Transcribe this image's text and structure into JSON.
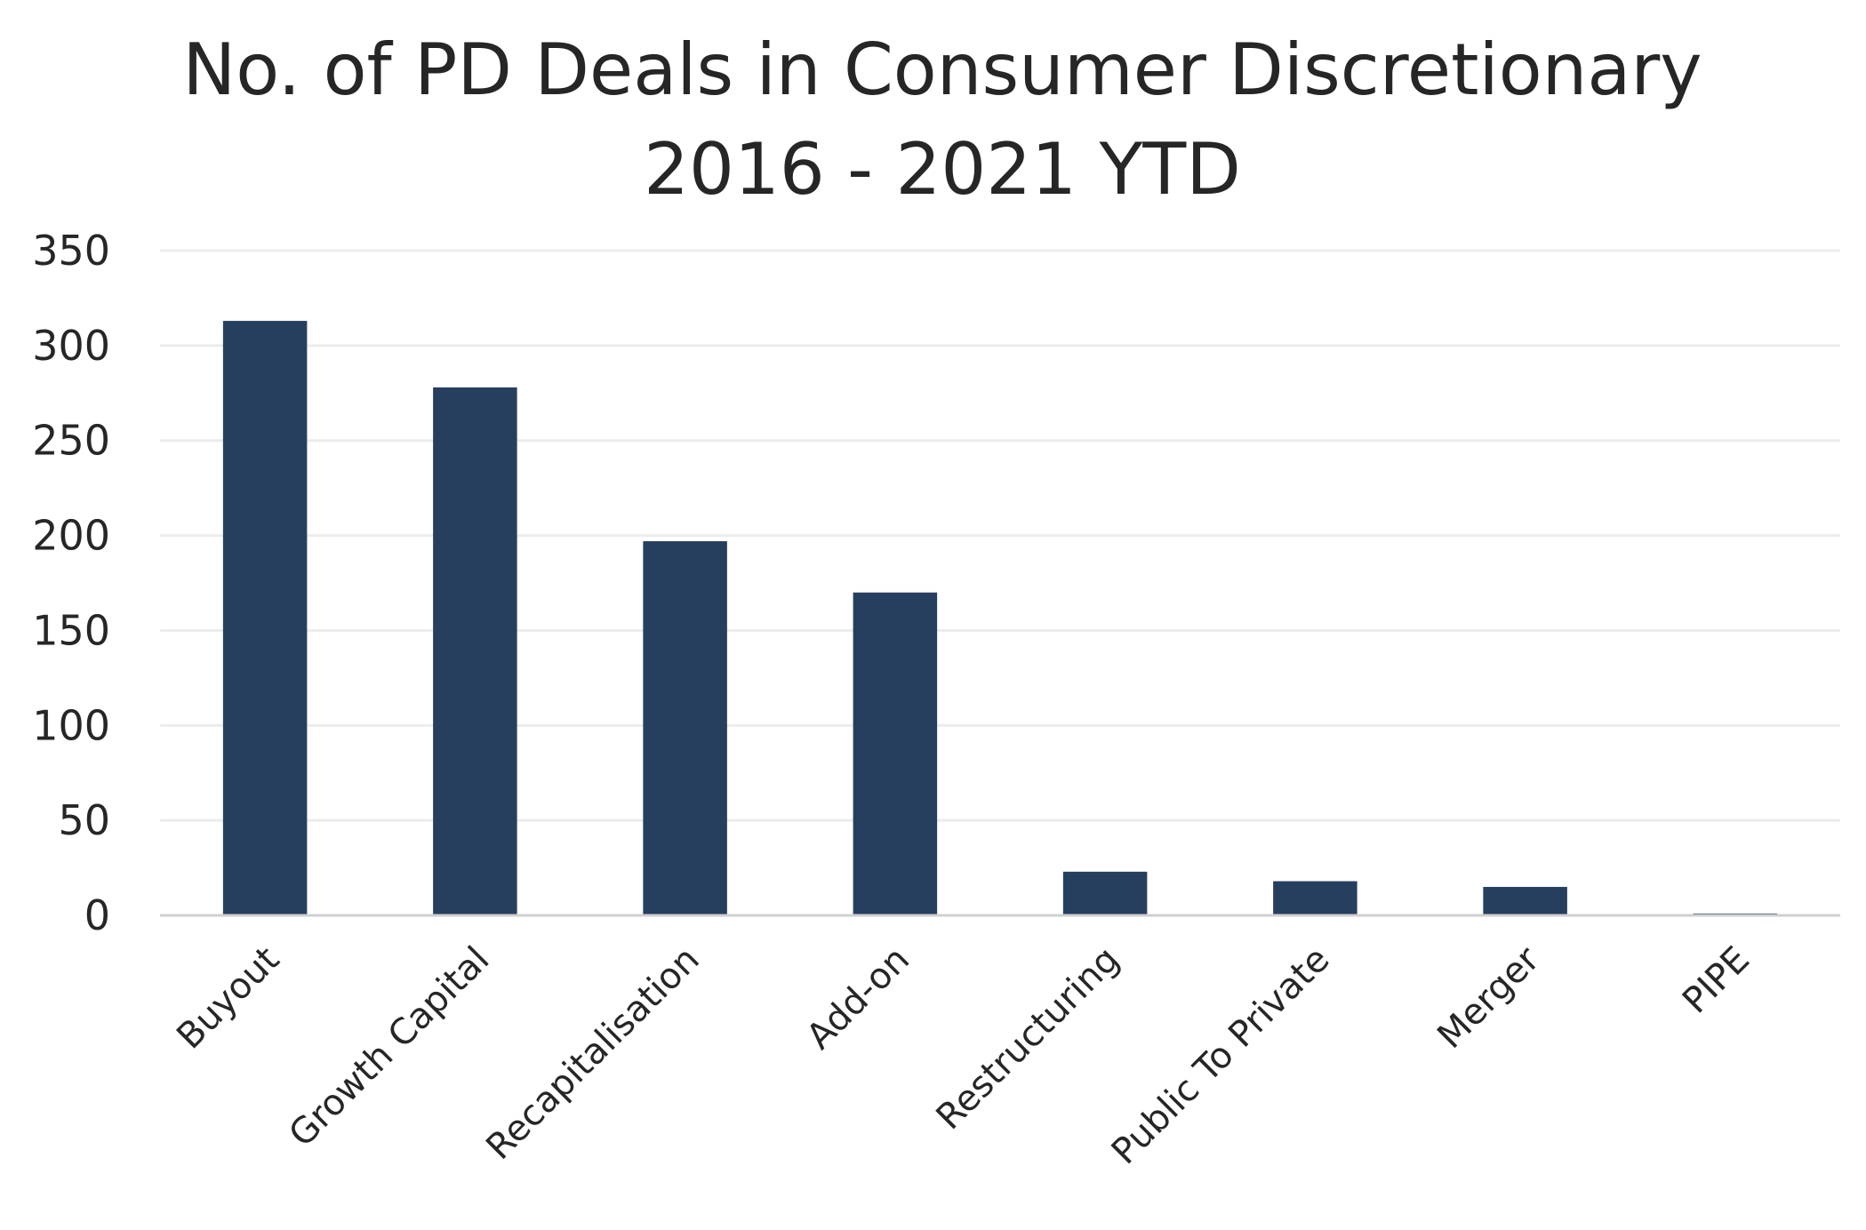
{
  "chart_data": {
    "type": "bar",
    "title_lines": [
      "No. of PD Deals in Consumer Discretionary",
      "2016 - 2021 YTD"
    ],
    "categories": [
      "Buyout",
      "Growth Capital",
      "Recapitalisation",
      "Add-on",
      "Restructuring",
      "Public To Private",
      "Merger",
      "PIPE"
    ],
    "values": [
      313,
      278,
      197,
      170,
      23,
      18,
      15,
      1
    ],
    "ylim": [
      0,
      350
    ],
    "yticks": [
      0,
      50,
      100,
      150,
      200,
      250,
      300,
      350
    ],
    "xlabel": "",
    "ylabel": "",
    "grid": true,
    "legend": "none",
    "bar_color": "#273f5f"
  }
}
